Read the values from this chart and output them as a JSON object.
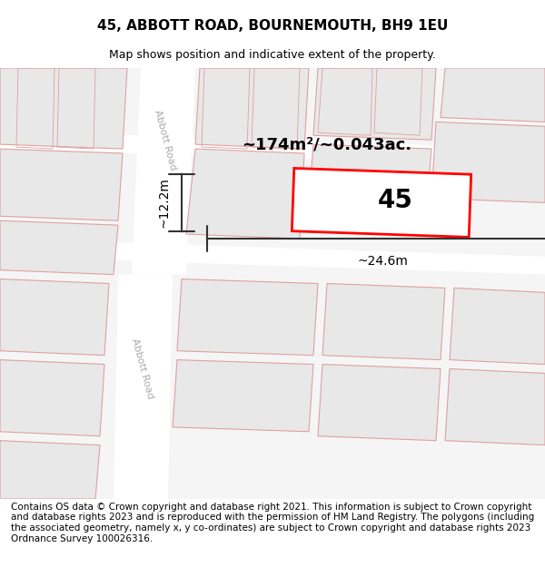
{
  "title": "45, ABBOTT ROAD, BOURNEMOUTH, BH9 1EU",
  "subtitle": "Map shows position and indicative extent of the property.",
  "title_fontsize": 11,
  "subtitle_fontsize": 9,
  "footer_text": "Contains OS data © Crown copyright and database right 2021. This information is subject to Crown copyright and database rights 2023 and is reproduced with the permission of HM Land Registry. The polygons (including the associated geometry, namely x, y co-ordinates) are subject to Crown copyright and database rights 2023 Ordnance Survey 100026316.",
  "footer_fontsize": 7.5,
  "map_bg": "#f5f5f5",
  "road_color": "#ffffff",
  "building_fill": "#e8e8e8",
  "building_edge_color": "#e0a0a0",
  "highlight_color": "#ff0000",
  "highlight_fill": "#ffffff",
  "area_text": "~174m²/~0.043ac.",
  "area_fontsize": 13,
  "property_number": "45",
  "property_fontsize": 20,
  "dim_width_text": "~24.6m",
  "dim_height_text": "~12.2m",
  "dim_fontsize": 10,
  "road_label": "Abbott Road",
  "road_label2": "Abbott Road"
}
